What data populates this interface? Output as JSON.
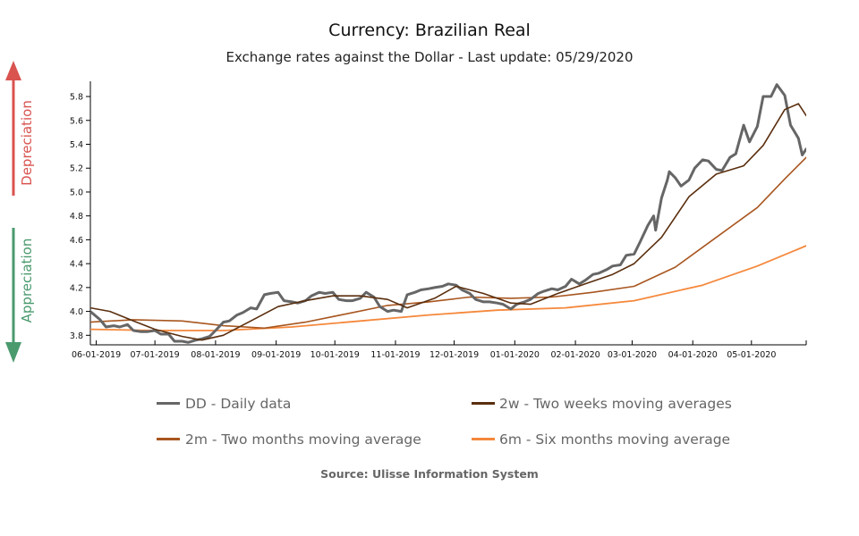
{
  "chart_data": {
    "type": "line",
    "title": "Currency: Brazilian Real",
    "subtitle": "Exchange rates against the Dollar - Last update: 05/29/2020",
    "source": "Source: Ulisse Information System",
    "xlabel": "",
    "ylabel": "",
    "x_range": [
      "2019-05-29",
      "2020-05-29"
    ],
    "ylim": [
      3.72,
      5.95
    ],
    "y_ticks": [
      3.8,
      4.0,
      4.2,
      4.4,
      4.6,
      4.8,
      5.0,
      5.2,
      5.4,
      5.6,
      5.8
    ],
    "y_tick_labels": [
      "3.8",
      "4.0",
      "4.2",
      "4.4",
      "4.6",
      "4.8",
      "5.0",
      "5.2",
      "5.4",
      "5.6",
      "5.8"
    ],
    "x_ticks": [
      "2019-06-01",
      "2019-07-01",
      "2019-08-01",
      "2019-09-01",
      "2019-10-01",
      "2019-11-01",
      "2019-12-01",
      "2020-01-01",
      "2020-02-01",
      "2020-03-01",
      "2020-04-01",
      "2020-05-01"
    ],
    "x_tick_labels": [
      "06-01-2019",
      "07-01-2019",
      "08-01-2019",
      "09-01-2019",
      "10-01-2019",
      "11-01-2019",
      "12-01-2019",
      "01-01-2020",
      "02-01-2020",
      "03-01-2020",
      "04-01-2020",
      "05-01-2020"
    ],
    "grid": false,
    "legend_position": "bottom",
    "side_annotations": {
      "up": {
        "label": "Depreciation",
        "color": "#d9534f"
      },
      "down": {
        "label": "Appreciation",
        "color": "#4a9a6e"
      }
    },
    "series": [
      {
        "key": "DD",
        "name": "DD - Daily data",
        "color": "#666666",
        "points": [
          [
            "2019-05-29",
            4.0
          ],
          [
            "2019-06-03",
            3.93
          ],
          [
            "2019-06-06",
            3.87
          ],
          [
            "2019-06-10",
            3.88
          ],
          [
            "2019-06-13",
            3.87
          ],
          [
            "2019-06-17",
            3.89
          ],
          [
            "2019-06-20",
            3.84
          ],
          [
            "2019-06-24",
            3.83
          ],
          [
            "2019-06-27",
            3.83
          ],
          [
            "2019-07-01",
            3.84
          ],
          [
            "2019-07-04",
            3.81
          ],
          [
            "2019-07-08",
            3.81
          ],
          [
            "2019-07-11",
            3.75
          ],
          [
            "2019-07-15",
            3.75
          ],
          [
            "2019-07-18",
            3.74
          ],
          [
            "2019-07-22",
            3.76
          ],
          [
            "2019-07-25",
            3.77
          ],
          [
            "2019-07-29",
            3.79
          ],
          [
            "2019-08-01",
            3.84
          ],
          [
            "2019-08-05",
            3.91
          ],
          [
            "2019-08-08",
            3.92
          ],
          [
            "2019-08-12",
            3.97
          ],
          [
            "2019-08-15",
            3.99
          ],
          [
            "2019-08-19",
            4.03
          ],
          [
            "2019-08-22",
            4.02
          ],
          [
            "2019-08-26",
            4.14
          ],
          [
            "2019-08-29",
            4.15
          ],
          [
            "2019-09-02",
            4.16
          ],
          [
            "2019-09-05",
            4.09
          ],
          [
            "2019-09-09",
            4.08
          ],
          [
            "2019-09-12",
            4.07
          ],
          [
            "2019-09-16",
            4.09
          ],
          [
            "2019-09-19",
            4.13
          ],
          [
            "2019-09-23",
            4.16
          ],
          [
            "2019-09-26",
            4.15
          ],
          [
            "2019-09-30",
            4.16
          ],
          [
            "2019-10-03",
            4.1
          ],
          [
            "2019-10-07",
            4.09
          ],
          [
            "2019-10-10",
            4.09
          ],
          [
            "2019-10-14",
            4.11
          ],
          [
            "2019-10-17",
            4.16
          ],
          [
            "2019-10-21",
            4.12
          ],
          [
            "2019-10-24",
            4.04
          ],
          [
            "2019-10-28",
            4.0
          ],
          [
            "2019-10-31",
            4.01
          ],
          [
            "2019-11-04",
            4.0
          ],
          [
            "2019-11-07",
            4.14
          ],
          [
            "2019-11-11",
            4.16
          ],
          [
            "2019-11-14",
            4.18
          ],
          [
            "2019-11-18",
            4.19
          ],
          [
            "2019-11-21",
            4.2
          ],
          [
            "2019-11-25",
            4.21
          ],
          [
            "2019-11-28",
            4.23
          ],
          [
            "2019-12-02",
            4.22
          ],
          [
            "2019-12-05",
            4.18
          ],
          [
            "2019-12-09",
            4.15
          ],
          [
            "2019-12-12",
            4.1
          ],
          [
            "2019-12-16",
            4.08
          ],
          [
            "2019-12-19",
            4.08
          ],
          [
            "2019-12-23",
            4.07
          ],
          [
            "2019-12-26",
            4.06
          ],
          [
            "2019-12-30",
            4.02
          ],
          [
            "2020-01-02",
            4.06
          ],
          [
            "2020-01-06",
            4.08
          ],
          [
            "2020-01-09",
            4.1
          ],
          [
            "2020-01-13",
            4.15
          ],
          [
            "2020-01-16",
            4.17
          ],
          [
            "2020-01-20",
            4.19
          ],
          [
            "2020-01-23",
            4.18
          ],
          [
            "2020-01-27",
            4.21
          ],
          [
            "2020-01-30",
            4.27
          ],
          [
            "2020-02-03",
            4.23
          ],
          [
            "2020-02-06",
            4.26
          ],
          [
            "2020-02-10",
            4.31
          ],
          [
            "2020-02-13",
            4.32
          ],
          [
            "2020-02-17",
            4.35
          ],
          [
            "2020-02-20",
            4.38
          ],
          [
            "2020-02-24",
            4.39
          ],
          [
            "2020-02-27",
            4.47
          ],
          [
            "2020-03-02",
            4.48
          ],
          [
            "2020-03-05",
            4.58
          ],
          [
            "2020-03-09",
            4.72
          ],
          [
            "2020-03-12",
            4.8
          ],
          [
            "2020-03-13",
            4.68
          ],
          [
            "2020-03-16",
            4.95
          ],
          [
            "2020-03-19",
            5.1
          ],
          [
            "2020-03-20",
            5.17
          ],
          [
            "2020-03-23",
            5.12
          ],
          [
            "2020-03-26",
            5.05
          ],
          [
            "2020-03-30",
            5.1
          ],
          [
            "2020-04-02",
            5.2
          ],
          [
            "2020-04-06",
            5.27
          ],
          [
            "2020-04-09",
            5.26
          ],
          [
            "2020-04-13",
            5.19
          ],
          [
            "2020-04-16",
            5.18
          ],
          [
            "2020-04-20",
            5.29
          ],
          [
            "2020-04-23",
            5.32
          ],
          [
            "2020-04-27",
            5.56
          ],
          [
            "2020-04-30",
            5.42
          ],
          [
            "2020-05-04",
            5.55
          ],
          [
            "2020-05-07",
            5.8
          ],
          [
            "2020-05-11",
            5.8
          ],
          [
            "2020-05-14",
            5.9
          ],
          [
            "2020-05-18",
            5.81
          ],
          [
            "2020-05-21",
            5.56
          ],
          [
            "2020-05-25",
            5.45
          ],
          [
            "2020-05-27",
            5.31
          ],
          [
            "2020-05-29",
            5.36
          ]
        ]
      },
      {
        "key": "2w",
        "name": "2w - Two weeks moving averages",
        "color": "#5a2e0e",
        "points": [
          [
            "2019-05-29",
            4.03
          ],
          [
            "2019-06-08",
            4.0
          ],
          [
            "2019-06-20",
            3.92
          ],
          [
            "2019-07-01",
            3.85
          ],
          [
            "2019-07-15",
            3.79
          ],
          [
            "2019-07-25",
            3.76
          ],
          [
            "2019-08-05",
            3.8
          ],
          [
            "2019-08-19",
            3.92
          ],
          [
            "2019-09-02",
            4.04
          ],
          [
            "2019-09-16",
            4.09
          ],
          [
            "2019-09-30",
            4.13
          ],
          [
            "2019-10-14",
            4.13
          ],
          [
            "2019-10-28",
            4.1
          ],
          [
            "2019-11-07",
            4.03
          ],
          [
            "2019-11-21",
            4.11
          ],
          [
            "2019-12-02",
            4.21
          ],
          [
            "2019-12-16",
            4.15
          ],
          [
            "2019-12-30",
            4.07
          ],
          [
            "2020-01-09",
            4.06
          ],
          [
            "2020-01-23",
            4.15
          ],
          [
            "2020-02-06",
            4.23
          ],
          [
            "2020-02-20",
            4.31
          ],
          [
            "2020-03-02",
            4.4
          ],
          [
            "2020-03-16",
            4.62
          ],
          [
            "2020-03-30",
            4.96
          ],
          [
            "2020-04-13",
            5.15
          ],
          [
            "2020-04-27",
            5.22
          ],
          [
            "2020-05-07",
            5.39
          ],
          [
            "2020-05-18",
            5.69
          ],
          [
            "2020-05-25",
            5.74
          ],
          [
            "2020-05-29",
            5.64
          ]
        ]
      },
      {
        "key": "2m",
        "name": "2m - Two months moving average",
        "color": "#a8561f",
        "points": [
          [
            "2019-05-29",
            3.91
          ],
          [
            "2019-06-20",
            3.93
          ],
          [
            "2019-07-15",
            3.92
          ],
          [
            "2019-08-05",
            3.88
          ],
          [
            "2019-08-26",
            3.86
          ],
          [
            "2019-09-16",
            3.91
          ],
          [
            "2019-10-07",
            3.98
          ],
          [
            "2019-10-28",
            4.05
          ],
          [
            "2019-11-18",
            4.08
          ],
          [
            "2019-12-09",
            4.12
          ],
          [
            "2019-12-30",
            4.11
          ],
          [
            "2020-01-20",
            4.12
          ],
          [
            "2020-02-10",
            4.16
          ],
          [
            "2020-03-02",
            4.21
          ],
          [
            "2020-03-23",
            4.37
          ],
          [
            "2020-04-13",
            4.62
          ],
          [
            "2020-05-04",
            4.87
          ],
          [
            "2020-05-18",
            5.11
          ],
          [
            "2020-05-29",
            5.29
          ]
        ]
      },
      {
        "key": "6m",
        "name": "6m - Six months moving average",
        "color": "#f5883c",
        "points": [
          [
            "2019-05-29",
            3.85
          ],
          [
            "2019-07-01",
            3.84
          ],
          [
            "2019-08-05",
            3.84
          ],
          [
            "2019-09-09",
            3.87
          ],
          [
            "2019-10-14",
            3.92
          ],
          [
            "2019-11-18",
            3.97
          ],
          [
            "2019-12-23",
            4.01
          ],
          [
            "2020-01-27",
            4.03
          ],
          [
            "2020-03-02",
            4.09
          ],
          [
            "2020-04-06",
            4.22
          ],
          [
            "2020-05-04",
            4.38
          ],
          [
            "2020-05-29",
            4.55
          ]
        ]
      }
    ]
  }
}
